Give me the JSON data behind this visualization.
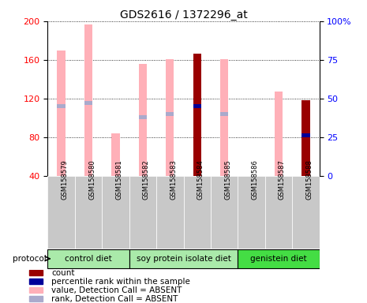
{
  "title": "GDS2616 / 1372296_at",
  "samples": [
    "GSM158579",
    "GSM158580",
    "GSM158581",
    "GSM158582",
    "GSM158583",
    "GSM158584",
    "GSM158585",
    "GSM158586",
    "GSM158587",
    "GSM158588"
  ],
  "value_absent": [
    170,
    197,
    84,
    156,
    161,
    null,
    161,
    null,
    127,
    null
  ],
  "rank_absent_pct": [
    45,
    47,
    null,
    38,
    40,
    null,
    40,
    null,
    null,
    null
  ],
  "count_value": [
    null,
    null,
    null,
    null,
    null,
    166,
    null,
    null,
    null,
    118
  ],
  "count_rank_pct": [
    null,
    null,
    null,
    null,
    null,
    45,
    null,
    null,
    null,
    26
  ],
  "ylim_left": [
    40,
    200
  ],
  "ylim_right": [
    0,
    100
  ],
  "yticks_left": [
    40,
    80,
    120,
    160,
    200
  ],
  "yticks_right": [
    0,
    25,
    50,
    75,
    100
  ],
  "groups": [
    {
      "label": "control diet",
      "start": 0,
      "end": 2
    },
    {
      "label": "soy protein isolate diet",
      "start": 3,
      "end": 6
    },
    {
      "label": "genistein diet",
      "start": 7,
      "end": 9
    }
  ],
  "group_colors": [
    "#AAEAAA",
    "#AAEAAA",
    "#44DD44"
  ],
  "bar_width": 0.3,
  "color_pink": "#FFB0B8",
  "color_lightblue": "#AAAACC",
  "color_darkred": "#990000",
  "color_darkblue": "#000099",
  "color_xbg": "#CCCCCC",
  "legend_items": [
    {
      "label": "count",
      "color": "#990000"
    },
    {
      "label": "percentile rank within the sample",
      "color": "#000099"
    },
    {
      "label": "value, Detection Call = ABSENT",
      "color": "#FFB0B8"
    },
    {
      "label": "rank, Detection Call = ABSENT",
      "color": "#AAAACC"
    }
  ]
}
